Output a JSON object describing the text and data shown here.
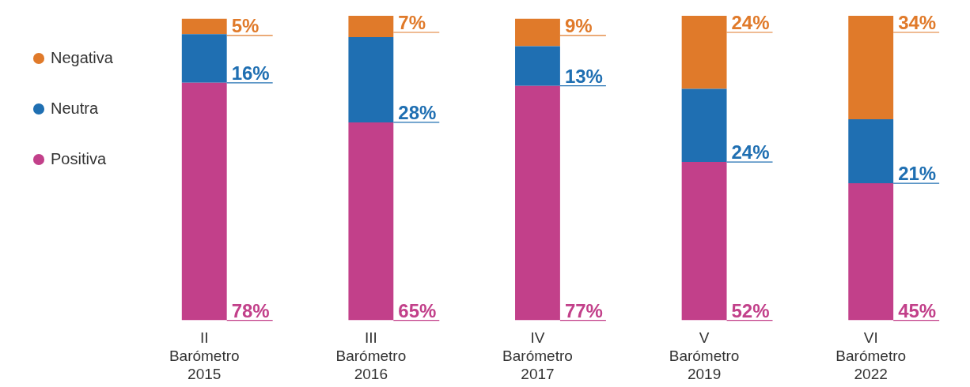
{
  "chart_data": {
    "type": "bar",
    "stacked": true,
    "legend": "top left",
    "marker": "circle",
    "categories": [
      "II\nBarómetro\n2015",
      "III\nBarómetro\n2016",
      "IV\nBarómetro\n2017",
      "V\nBarómetro\n2019",
      "VI\nBarómetro\n2022"
    ],
    "series": [
      {
        "name": "Positiva",
        "color": "#c2408a",
        "values": [
          78,
          65,
          77,
          52,
          45
        ],
        "value_labels": [
          "78%",
          "65%",
          "77%",
          "52%",
          "45%"
        ]
      },
      {
        "name": "Neutra",
        "color": "#1f6fb2",
        "values": [
          16,
          28,
          13,
          24,
          21
        ],
        "value_labels": [
          "16%",
          "28%",
          "13%",
          "24%",
          "21%"
        ]
      },
      {
        "name": "Negativa",
        "color": "#e07a2a",
        "values": [
          5,
          7,
          9,
          24,
          34
        ],
        "value_labels": [
          "5%",
          "7%",
          "9%",
          "24%",
          "34%"
        ]
      }
    ]
  }
}
